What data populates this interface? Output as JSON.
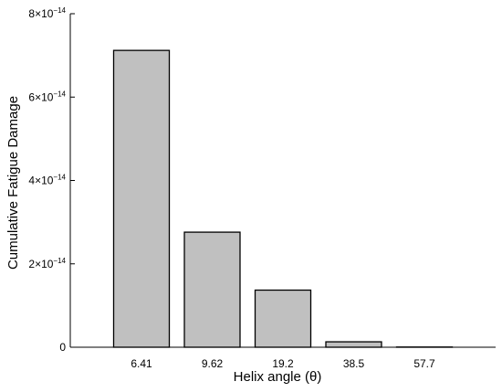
{
  "chart_data": {
    "type": "bar",
    "xlabel": "Helix angle (θ)",
    "ylabel": "Cumulative Fatigue Damage",
    "categories": [
      "6.41",
      "9.62",
      "19.2",
      "38.5",
      "57.7"
    ],
    "values": [
      7.12e-14,
      2.76e-14,
      1.37e-14,
      1.3e-15,
      5e-17
    ],
    "ylim": [
      0,
      8e-14
    ],
    "y_ticks": [
      {
        "value": 0,
        "mantissa": "0",
        "exponent": ""
      },
      {
        "value": 2e-14,
        "mantissa": "2×10",
        "exponent": "−14"
      },
      {
        "value": 4e-14,
        "mantissa": "4×10",
        "exponent": "−14"
      },
      {
        "value": 6e-14,
        "mantissa": "6×10",
        "exponent": "−14"
      },
      {
        "value": 8e-14,
        "mantissa": "8×10",
        "exponent": "−14"
      }
    ],
    "grid": false,
    "legend": "none",
    "colors": {
      "bar_fill": "#c0c0c0",
      "bar_stroke": "#000000"
    }
  }
}
